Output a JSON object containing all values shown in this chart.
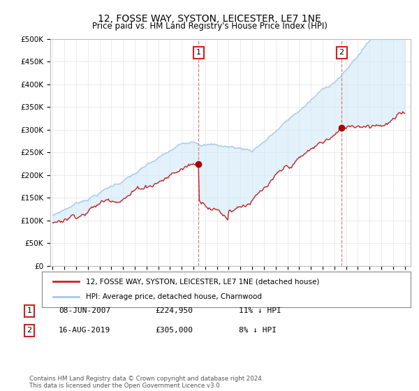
{
  "title": "12, FOSSE WAY, SYSTON, LEICESTER, LE7 1NE",
  "subtitle": "Price paid vs. HM Land Registry's House Price Index (HPI)",
  "ylim": [
    0,
    500000
  ],
  "yticks": [
    0,
    50000,
    100000,
    150000,
    200000,
    250000,
    300000,
    350000,
    400000,
    450000,
    500000
  ],
  "ytick_labels": [
    "£0",
    "£50K",
    "£100K",
    "£150K",
    "£200K",
    "£250K",
    "£300K",
    "£350K",
    "£400K",
    "£450K",
    "£500K"
  ],
  "xlim_left": 1994.8,
  "xlim_right": 2025.5,
  "transaction1_year": 2007.44,
  "transaction1_price": 224950,
  "transaction2_year": 2019.62,
  "transaction2_price": 305000,
  "legend_line1": "12, FOSSE WAY, SYSTON, LEICESTER, LE7 1NE (detached house)",
  "legend_line2": "HPI: Average price, detached house, Charnwood",
  "ann_date1": "08-JUN-2007",
  "ann_price1": "£224,950",
  "ann_hpi1": "11% ↓ HPI",
  "ann_date2": "16-AUG-2019",
  "ann_price2": "£305,000",
  "ann_hpi2": "8% ↓ HPI",
  "footer": "Contains HM Land Registry data © Crown copyright and database right 2024.\nThis data is licensed under the Open Government Licence v3.0.",
  "hpi_color": "#a8c8e8",
  "hpi_fill_color": "#d0e8f8",
  "price_color": "#cc2222",
  "vline_color": "#e08080",
  "dot_color": "#aa0000",
  "grid_color": "#e8e8e8",
  "bg_color": "#ffffff"
}
